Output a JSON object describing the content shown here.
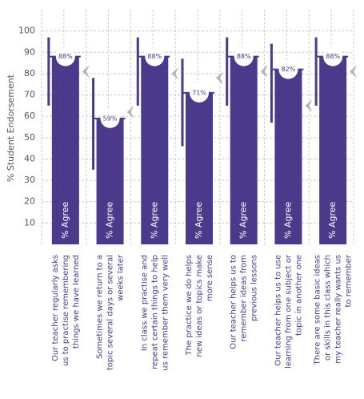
{
  "chart_data": {
    "type": "bar",
    "y_label": "% Student Endorsement",
    "bar_label": "% Agree",
    "categories": [
      [
        "Our teacher regularly asks",
        "us to practise remembering",
        "things we have learned"
      ],
      [
        "Sometimes we return to a",
        "topic several days or several",
        "weeks later"
      ],
      [
        "In class we practise and",
        "repeat certain things to help",
        "us remember them very well"
      ],
      [
        "The practice we do helps",
        "new ideas or topics make",
        "more sense"
      ],
      [
        "Our teacher helps us to",
        "remember ideas from",
        "previous lessons"
      ],
      [
        "Our teacher helps us to use",
        "learning from one subject or",
        "topic in another one"
      ],
      [
        "There are some basic ideas",
        "or skills in this class which",
        "my teacher really wants us",
        "to remember"
      ]
    ],
    "values": [
      88,
      59,
      88,
      71,
      88,
      82,
      88
    ],
    "value_labels": [
      "88%",
      "59%",
      "88%",
      "71%",
      "88%",
      "82%",
      "88%"
    ],
    "low": [
      65,
      35,
      65,
      46,
      65,
      57,
      65
    ],
    "high": [
      97,
      78,
      97,
      87,
      97,
      94,
      97
    ],
    "marker_values": [
      81,
      62,
      80,
      78,
      81,
      65,
      81
    ],
    "color": "#4b3a8c",
    "marker_color": "#b3b3b8",
    "ylim": [
      0,
      110
    ],
    "yticks": [
      10,
      20,
      30,
      40,
      50,
      60,
      70,
      80,
      90,
      100
    ],
    "grid": true
  }
}
